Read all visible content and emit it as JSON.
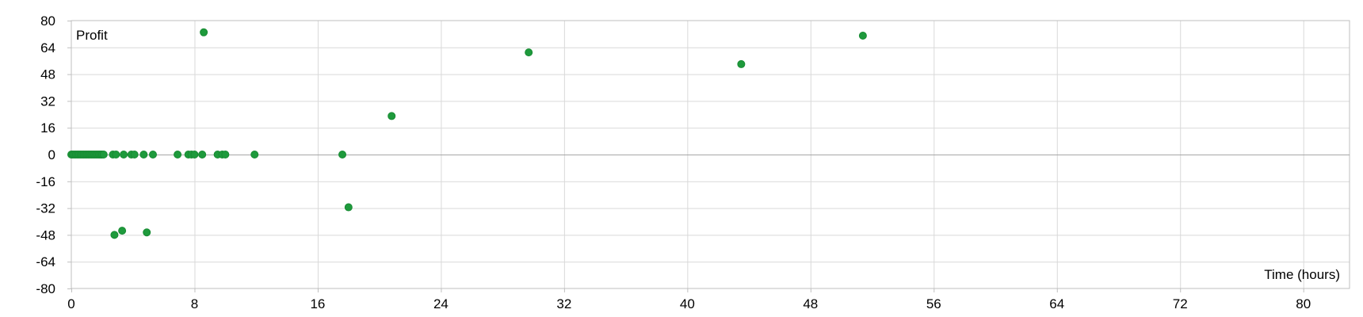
{
  "chart_data": {
    "type": "scatter",
    "title": "",
    "xlabel": "Time (hours)",
    "ylabel": "Profit",
    "xlim": [
      0,
      83
    ],
    "ylim": [
      -80,
      80
    ],
    "x_ticks": [
      0,
      8,
      16,
      24,
      32,
      40,
      48,
      56,
      64,
      72,
      80
    ],
    "y_ticks": [
      80,
      64,
      48,
      32,
      16,
      0,
      -16,
      -32,
      -48,
      -64,
      -80
    ],
    "grid": true,
    "legend": "none",
    "colors": {
      "marker": "#1e9a3c",
      "grid": "#d9d9d9",
      "zero_line": "#a6a6a6",
      "plot_border": "#bfbfbf"
    },
    "series": [
      {
        "points": [
          {
            "x": 0.0,
            "y": 0
          },
          {
            "x": 0.1,
            "y": 0
          },
          {
            "x": 0.2,
            "y": 0
          },
          {
            "x": 0.3,
            "y": 0
          },
          {
            "x": 0.4,
            "y": 0
          },
          {
            "x": 0.5,
            "y": 0
          },
          {
            "x": 0.6,
            "y": 0
          },
          {
            "x": 0.7,
            "y": 0
          },
          {
            "x": 0.8,
            "y": 0
          },
          {
            "x": 0.9,
            "y": 0
          },
          {
            "x": 1.0,
            "y": 0
          },
          {
            "x": 1.1,
            "y": 0
          },
          {
            "x": 1.2,
            "y": 0
          },
          {
            "x": 1.3,
            "y": 0
          },
          {
            "x": 1.4,
            "y": 0
          },
          {
            "x": 1.5,
            "y": 0
          },
          {
            "x": 1.6,
            "y": 0
          },
          {
            "x": 1.7,
            "y": 0
          },
          {
            "x": 1.8,
            "y": 0
          },
          {
            "x": 1.9,
            "y": 0
          },
          {
            "x": 2.0,
            "y": 0
          },
          {
            "x": 2.1,
            "y": 0
          },
          {
            "x": 2.7,
            "y": 0
          },
          {
            "x": 2.9,
            "y": 0
          },
          {
            "x": 3.4,
            "y": 0
          },
          {
            "x": 3.9,
            "y": 0
          },
          {
            "x": 4.1,
            "y": 0
          },
          {
            "x": 4.7,
            "y": 0
          },
          {
            "x": 5.3,
            "y": 0
          },
          {
            "x": 6.9,
            "y": 0
          },
          {
            "x": 7.6,
            "y": 0
          },
          {
            "x": 7.8,
            "y": 0
          },
          {
            "x": 8.0,
            "y": 0
          },
          {
            "x": 8.5,
            "y": 0
          },
          {
            "x": 9.5,
            "y": 0
          },
          {
            "x": 9.8,
            "y": 0
          },
          {
            "x": 10.0,
            "y": 0
          },
          {
            "x": 11.9,
            "y": 0
          },
          {
            "x": 17.6,
            "y": 0
          },
          {
            "x": 2.8,
            "y": -48
          },
          {
            "x": 3.3,
            "y": -45.5
          },
          {
            "x": 4.9,
            "y": -46.5
          },
          {
            "x": 8.6,
            "y": 73
          },
          {
            "x": 18.0,
            "y": -31.5
          },
          {
            "x": 20.8,
            "y": 23
          },
          {
            "x": 29.7,
            "y": 61
          },
          {
            "x": 43.5,
            "y": 54
          },
          {
            "x": 51.4,
            "y": 71
          }
        ]
      }
    ]
  }
}
